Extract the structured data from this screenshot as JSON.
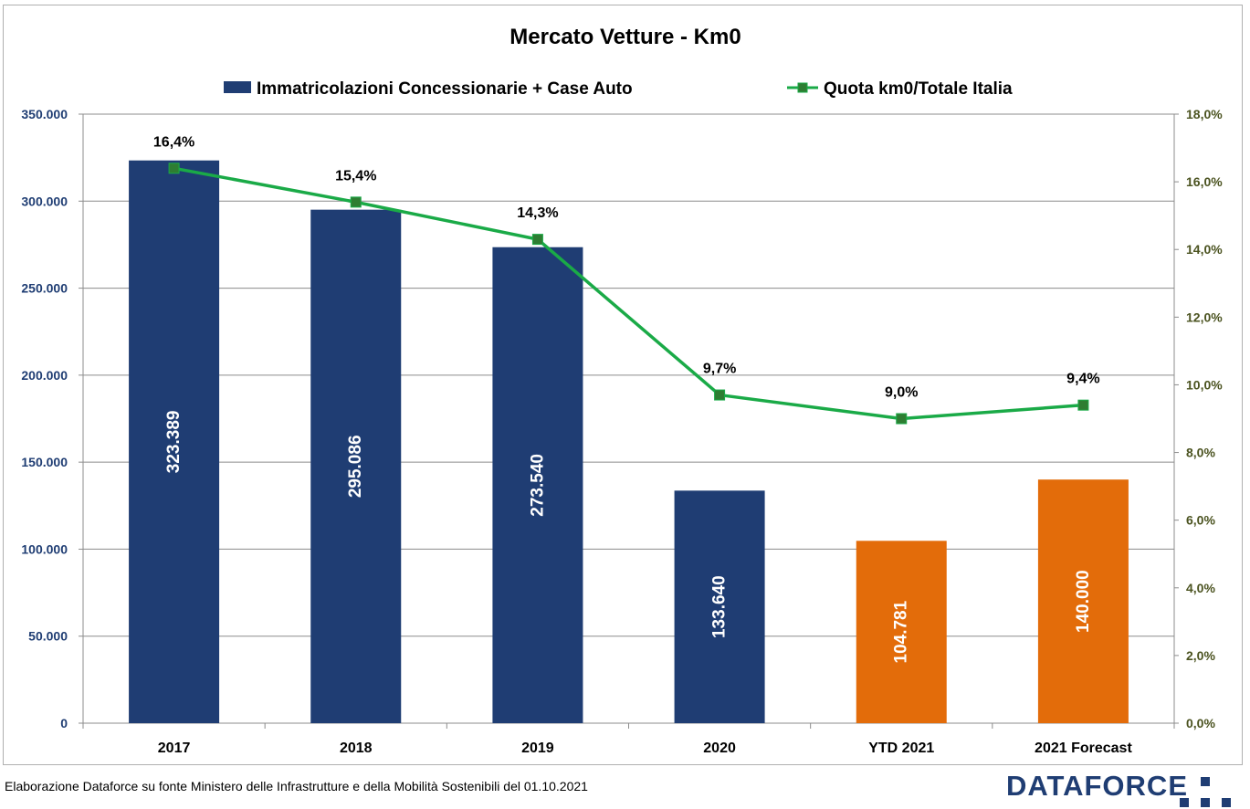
{
  "chart_data": {
    "type": "bar",
    "title": "Mercato Vetture - Km0",
    "categories": [
      "2017",
      "2018",
      "2019",
      "2020",
      "YTD 2021",
      "2021 Forecast"
    ],
    "series": [
      {
        "name": "Immatricolazioni Concessionarie + Case Auto",
        "type": "bar",
        "axis": "left",
        "values": [
          323389,
          295086,
          273540,
          133640,
          104781,
          140000
        ],
        "value_labels": [
          "323.389",
          "295.086",
          "273.540",
          "133.640",
          "104.781",
          "140.000"
        ],
        "colors": [
          "#1f3d73",
          "#1f3d73",
          "#1f3d73",
          "#1f3d73",
          "#e36c0a",
          "#e36c0a"
        ]
      },
      {
        "name": "Quota km0/Totale Italia",
        "type": "line",
        "axis": "right",
        "values": [
          16.4,
          15.4,
          14.3,
          9.7,
          9.0,
          9.4
        ],
        "value_labels": [
          "16,4%",
          "15,4%",
          "14,3%",
          "9,7%",
          "9,0%",
          "9,4%"
        ],
        "line_color": "#1aaa47",
        "marker_color": "#2e7d32"
      }
    ],
    "y_left": {
      "range": [
        0,
        350000
      ],
      "ticks": [
        0,
        50000,
        100000,
        150000,
        200000,
        250000,
        300000,
        350000
      ],
      "tick_labels": [
        "0",
        "50.000",
        "100.000",
        "150.000",
        "200.000",
        "250.000",
        "300.000",
        "350.000"
      ]
    },
    "y_right": {
      "range": [
        0,
        18
      ],
      "ticks": [
        0,
        2,
        4,
        6,
        8,
        10,
        12,
        14,
        16,
        18
      ],
      "tick_labels": [
        "0,0%",
        "2,0%",
        "4,0%",
        "6,0%",
        "8,0%",
        "10,0%",
        "12,0%",
        "14,0%",
        "16,0%",
        "18,0%"
      ]
    },
    "grid": true,
    "legend": "top"
  },
  "footer": {
    "note": "Elaborazione Dataforce su fonte Ministero delle Infrastrutture e della Mobilità Sostenibili del 01.10.2021",
    "brand": "DATAFORCE"
  }
}
